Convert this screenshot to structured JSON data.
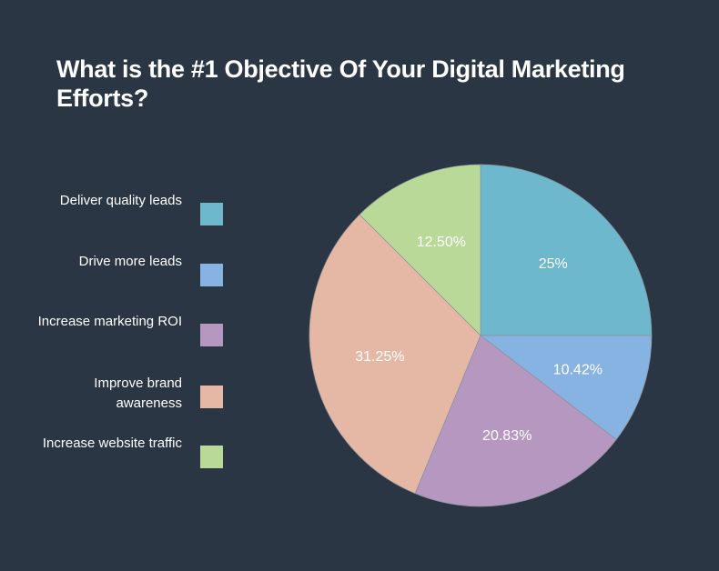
{
  "chart_data": {
    "type": "pie",
    "title": "What is the #1 Objective Of Your Digital Marketing Efforts?",
    "start_angle": "top, clockwise",
    "legend_placement": "left",
    "slices": [
      {
        "name": "Deliver quality leads",
        "value": 25,
        "label": "25%",
        "color": "#6db8cc"
      },
      {
        "name": "Drive more leads",
        "value": 10.42,
        "label": "10.42%",
        "color": "#87b3e3"
      },
      {
        "name": "Increase marketing ROI",
        "value": 20.83,
        "label": "20.83%",
        "color": "#b597c0"
      },
      {
        "name": "Improve brand awareness",
        "value": 31.25,
        "label": "31.25%",
        "color": "#e5b8a6"
      },
      {
        "name": "Increase website traffic",
        "value": 12.5,
        "label": "12.50%",
        "color": "#b8d998"
      }
    ]
  },
  "legend": [
    {
      "label": "Deliver quality leads"
    },
    {
      "label": "Drive more leads"
    },
    {
      "label": "Increase marketing ROI"
    },
    {
      "label": "Improve brand awareness"
    },
    {
      "label": "Increase website traffic"
    }
  ],
  "colors": {
    "background": "#2a3643",
    "text": "#ffffff"
  }
}
